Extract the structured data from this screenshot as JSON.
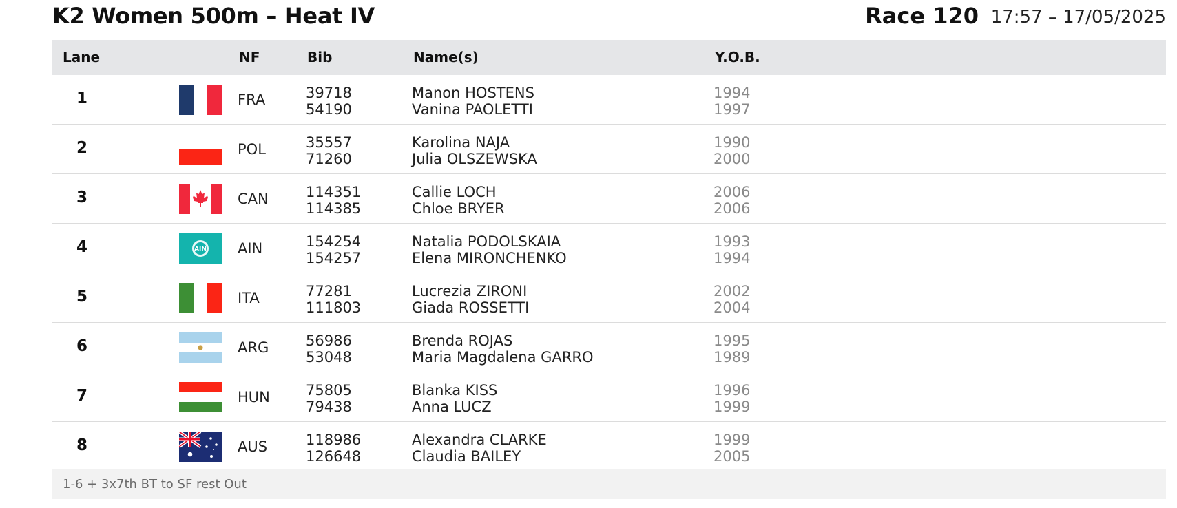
{
  "header": {
    "title": "K2 Women 500m – Heat IV",
    "race": "Race 120",
    "datetime": "17:57 – 17/05/2025"
  },
  "columns": {
    "lane": "Lane",
    "nf": "NF",
    "bib": "Bib",
    "names": "Name(s)",
    "yob": "Y.O.B."
  },
  "rows": [
    {
      "lane": "1",
      "flag_icon": "france-flag-icon",
      "nf": "FRA",
      "bibs": [
        "39718",
        "54190"
      ],
      "names": [
        "Manon HOSTENS",
        "Vanina PAOLETTI"
      ],
      "yob": [
        "1994",
        "1997"
      ]
    },
    {
      "lane": "2",
      "flag_icon": "poland-flag-icon",
      "nf": "POL",
      "bibs": [
        "35557",
        "71260"
      ],
      "names": [
        "Karolina NAJA",
        "Julia OLSZEWSKA"
      ],
      "yob": [
        "1990",
        "2000"
      ]
    },
    {
      "lane": "3",
      "flag_icon": "canada-flag-icon",
      "nf": "CAN",
      "bibs": [
        "114351",
        "114385"
      ],
      "names": [
        "Callie LOCH",
        "Chloe BRYER"
      ],
      "yob": [
        "2006",
        "2006"
      ]
    },
    {
      "lane": "4",
      "flag_icon": "ain-flag-icon",
      "nf": "AIN",
      "bibs": [
        "154254",
        "154257"
      ],
      "names": [
        "Natalia PODOLSKAIA",
        "Elena MIRONCHENKO"
      ],
      "yob": [
        "1993",
        "1994"
      ]
    },
    {
      "lane": "5",
      "flag_icon": "italy-flag-icon",
      "nf": "ITA",
      "bibs": [
        "77281",
        "111803"
      ],
      "names": [
        "Lucrezia ZIRONI",
        "Giada ROSSETTI"
      ],
      "yob": [
        "2002",
        "2004"
      ]
    },
    {
      "lane": "6",
      "flag_icon": "argentina-flag-icon",
      "nf": "ARG",
      "bibs": [
        "56986",
        "53048"
      ],
      "names": [
        "Brenda ROJAS",
        "Maria Magdalena GARRO"
      ],
      "yob": [
        "1995",
        "1989"
      ]
    },
    {
      "lane": "7",
      "flag_icon": "hungary-flag-icon",
      "nf": "HUN",
      "bibs": [
        "75805",
        "79438"
      ],
      "names": [
        "Blanka KISS",
        "Anna LUCZ"
      ],
      "yob": [
        "1996",
        "1999"
      ]
    },
    {
      "lane": "8",
      "flag_icon": "australia-flag-icon",
      "nf": "AUS",
      "bibs": [
        "118986",
        "126648"
      ],
      "names": [
        "Alexandra CLARKE",
        "Claudia BAILEY"
      ],
      "yob": [
        "1999",
        "2005"
      ]
    }
  ],
  "footer": {
    "note": "1-6 + 3x7th BT to SF rest Out"
  },
  "colors": {
    "header_bg": "#e5e6e8",
    "footer_bg": "#f2f2f2",
    "yob_text": "#8a8a8a"
  }
}
